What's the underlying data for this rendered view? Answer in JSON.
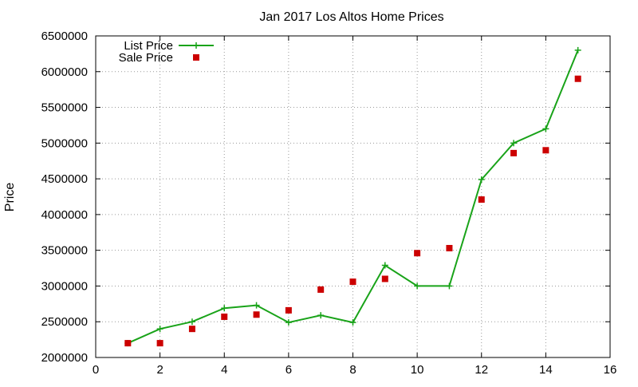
{
  "chart_data": {
    "type": "line",
    "title": "Jan 2017 Los Altos Home Prices",
    "xlabel": "",
    "ylabel": "Price",
    "xlim": [
      0,
      16
    ],
    "ylim": [
      2000000,
      6500000
    ],
    "xticks": [
      "0",
      "2",
      "4",
      "6",
      "8",
      "10",
      "12",
      "14",
      "16"
    ],
    "yticks": [
      "2000000",
      "2500000",
      "3000000",
      "3500000",
      "4000000",
      "4500000",
      "5000000",
      "5500000",
      "6000000",
      "6500000"
    ],
    "grid": true,
    "legend_position": "top-left",
    "series": [
      {
        "name": "List Price",
        "style": "lines+cross",
        "color": "#19a319",
        "x": [
          1,
          2,
          3,
          4,
          5,
          6,
          7,
          8,
          9,
          10,
          11,
          12,
          13,
          14,
          15
        ],
        "y": [
          2200000,
          2400000,
          2500000,
          2690000,
          2730000,
          2490000,
          2590000,
          2490000,
          3290000,
          3000000,
          3000000,
          4490000,
          5000000,
          5200000,
          6300000
        ]
      },
      {
        "name": "Sale Price",
        "style": "square-points",
        "color": "#cc0000",
        "x": [
          1,
          2,
          3,
          4,
          5,
          6,
          7,
          8,
          9,
          10,
          11,
          12,
          13,
          14,
          15
        ],
        "y": [
          2200000,
          2200000,
          2400000,
          2570000,
          2600000,
          2660000,
          2950000,
          3060000,
          3100000,
          3460000,
          3530000,
          4210000,
          4860000,
          4900000,
          5900000
        ]
      }
    ]
  }
}
